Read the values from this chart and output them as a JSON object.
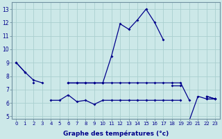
{
  "xlabel": "Graphe des températures (°c)",
  "background_color": "#cce8e8",
  "grid_color": "#aacfcf",
  "line_color": "#00008b",
  "hours": [
    0,
    1,
    2,
    3,
    4,
    5,
    6,
    7,
    8,
    9,
    10,
    11,
    12,
    13,
    14,
    15,
    16,
    17,
    18,
    19,
    20,
    21,
    22,
    23
  ],
  "line_main": [
    9.0,
    8.3,
    null,
    null,
    null,
    null,
    null,
    null,
    null,
    null,
    7.5,
    9.5,
    11.9,
    11.5,
    12.2,
    13.0,
    12.0,
    10.7,
    null,
    null,
    4.7,
    6.5,
    6.3,
    6.3
  ],
  "line_upper": [
    9.0,
    8.3,
    7.7,
    7.5,
    null,
    null,
    7.5,
    7.5,
    7.5,
    7.5,
    7.5,
    null,
    null,
    null,
    null,
    null,
    null,
    null,
    7.3,
    7.3,
    null,
    null,
    6.5,
    6.3
  ],
  "line_lower": [
    null,
    null,
    7.5,
    null,
    6.2,
    6.2,
    6.6,
    6.1,
    6.2,
    5.9,
    6.2,
    6.2,
    6.2,
    6.2,
    6.2,
    6.2,
    6.2,
    6.2,
    6.2,
    6.2,
    null,
    null,
    6.3,
    6.3
  ],
  "line_flat": [
    null,
    null,
    null,
    null,
    null,
    null,
    7.5,
    7.5,
    7.5,
    7.5,
    7.5,
    7.5,
    7.5,
    7.5,
    7.5,
    7.5,
    7.5,
    7.5,
    7.5,
    7.5,
    6.2,
    null,
    6.5,
    6.3
  ],
  "ylim": [
    4.8,
    13.5
  ],
  "yticks": [
    5,
    6,
    7,
    8,
    9,
    10,
    11,
    12,
    13
  ],
  "xlim": [
    -0.5,
    23.5
  ],
  "lw": 0.9,
  "ms": 2.0
}
